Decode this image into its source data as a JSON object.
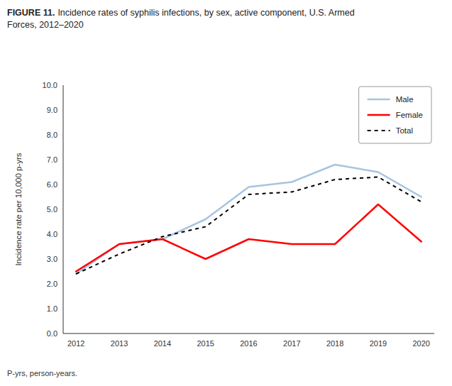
{
  "chart_data": {
    "type": "line",
    "title": "FIGURE 11.",
    "subtitle": "Incidence rates of syphilis infections, by sex, active component, U.S. Armed\nForces, 2012–2020",
    "y_label": "Incidence rate per 10,000 p-yrs",
    "annotations": [
      "P-yrs, person-years."
    ],
    "x": [
      2012,
      2013,
      2014,
      2015,
      2016,
      2017,
      2018,
      2019,
      2020
    ],
    "xlim": [
      2011.7,
      2020.3
    ],
    "xticks": [
      2012,
      2013,
      2014,
      2015,
      2016,
      2017,
      2018,
      2019,
      2020
    ],
    "ylim": [
      0.0,
      10.0
    ],
    "yticks": [
      {
        "value": 0.0,
        "label": "0.0"
      },
      {
        "value": 1.0,
        "label": "1.0"
      },
      {
        "value": 2.0,
        "label": "2.0"
      },
      {
        "value": 3.0,
        "label": "3.0"
      },
      {
        "value": 4.0,
        "label": "4.0"
      },
      {
        "value": 5.0,
        "label": "5.0"
      },
      {
        "value": 6.0,
        "label": "6.0"
      },
      {
        "value": 7.0,
        "label": "7.0"
      },
      {
        "value": 8.0,
        "label": "8.0"
      },
      {
        "value": 9.0,
        "label": "9.0"
      },
      {
        "value": 10.0,
        "label": "10.0"
      }
    ],
    "grid": false,
    "legend": "upper right",
    "series": [
      {
        "name": "Male",
        "color": "#a8c4e0",
        "line_style": "solid",
        "values": [
          2.4,
          3.6,
          3.8,
          4.6,
          5.9,
          6.1,
          6.8,
          6.5,
          5.5
        ]
      },
      {
        "name": "Female",
        "color": "#ff0000",
        "line_style": "solid",
        "values": [
          2.5,
          3.6,
          3.8,
          3.0,
          3.8,
          3.6,
          3.6,
          5.2,
          3.7
        ]
      },
      {
        "name": "Total",
        "color": "#000000",
        "line_style": "dashed",
        "values": [
          2.4,
          3.2,
          3.9,
          4.3,
          5.6,
          5.7,
          6.2,
          6.3,
          5.3
        ]
      }
    ]
  }
}
